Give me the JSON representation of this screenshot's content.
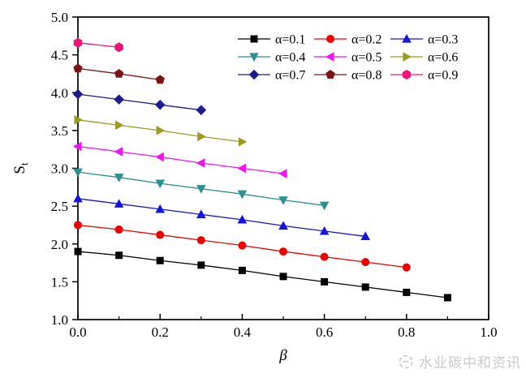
{
  "watermark": {
    "text": "水业碳中和资讯"
  },
  "colors": {
    "axis": "#000000",
    "background": "#ffffff",
    "watermark_gray": "#c9c9c9"
  },
  "chart_data": {
    "type": "line",
    "title": "",
    "xlabel": "β",
    "ylabel": "S",
    "ylabel_sub": "t",
    "xlim": [
      0.0,
      1.0
    ],
    "ylim": [
      1.0,
      5.0
    ],
    "grid": false,
    "legend_position": "top-right-inside",
    "legend_columns": 3,
    "x_ticks": [
      "0.0",
      "0.2",
      "0.4",
      "0.6",
      "0.8",
      "1.0"
    ],
    "x_minor_ticks": [
      0.1,
      0.3,
      0.5,
      0.7,
      0.9
    ],
    "y_ticks": [
      "1.0",
      "1.5",
      "2.0",
      "2.5",
      "3.0",
      "3.5",
      "4.0",
      "4.5",
      "5.0"
    ],
    "series": [
      {
        "name": "α=0.1",
        "marker": "square",
        "color": "#000000",
        "x": [
          0.0,
          0.1,
          0.2,
          0.3,
          0.4,
          0.5,
          0.6,
          0.7,
          0.8,
          0.9
        ],
        "y": [
          1.9,
          1.85,
          1.78,
          1.72,
          1.65,
          1.57,
          1.5,
          1.43,
          1.36,
          1.29
        ]
      },
      {
        "name": "α=0.2",
        "marker": "circle",
        "color": "#ee0000",
        "x": [
          0.0,
          0.1,
          0.2,
          0.3,
          0.4,
          0.5,
          0.6,
          0.7,
          0.8
        ],
        "y": [
          2.25,
          2.19,
          2.12,
          2.05,
          1.98,
          1.9,
          1.83,
          1.76,
          1.69
        ]
      },
      {
        "name": "α=0.3",
        "marker": "triangle-up",
        "color": "#1414dc",
        "x": [
          0.0,
          0.1,
          0.2,
          0.3,
          0.4,
          0.5,
          0.6,
          0.7
        ],
        "y": [
          2.6,
          2.53,
          2.46,
          2.39,
          2.32,
          2.24,
          2.17,
          2.1
        ]
      },
      {
        "name": "α=0.4",
        "marker": "triangle-down",
        "color": "#2a9090",
        "x": [
          0.0,
          0.1,
          0.2,
          0.3,
          0.4,
          0.5,
          0.6
        ],
        "y": [
          2.95,
          2.88,
          2.8,
          2.73,
          2.66,
          2.58,
          2.51
        ]
      },
      {
        "name": "α=0.5",
        "marker": "triangle-left",
        "color": "#ee14ee",
        "x": [
          0.0,
          0.1,
          0.2,
          0.3,
          0.4,
          0.5
        ],
        "y": [
          3.29,
          3.22,
          3.15,
          3.07,
          3.0,
          2.93
        ]
      },
      {
        "name": "α=0.6",
        "marker": "triangle-right",
        "color": "#9c9c1e",
        "x": [
          0.0,
          0.1,
          0.2,
          0.3,
          0.4
        ],
        "y": [
          3.64,
          3.57,
          3.5,
          3.42,
          3.35
        ]
      },
      {
        "name": "α=0.7",
        "marker": "diamond",
        "color": "#1c1c8e",
        "x": [
          0.0,
          0.1,
          0.2,
          0.3
        ],
        "y": [
          3.98,
          3.91,
          3.84,
          3.77
        ]
      },
      {
        "name": "α=0.8",
        "marker": "pentagon",
        "color": "#7a1414",
        "x": [
          0.0,
          0.1,
          0.2
        ],
        "y": [
          4.32,
          4.25,
          4.17
        ]
      },
      {
        "name": "α=0.9",
        "marker": "hexagon",
        "color": "#f01478",
        "x": [
          0.0,
          0.1
        ],
        "y": [
          4.66,
          4.6
        ]
      }
    ]
  }
}
